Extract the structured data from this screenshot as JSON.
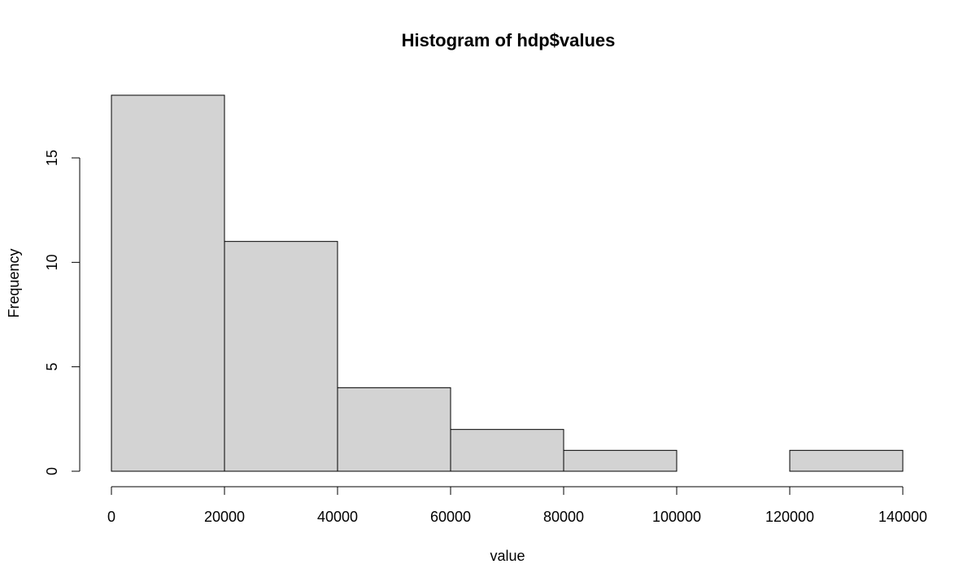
{
  "chart_data": {
    "type": "bar",
    "title": "Histogram of hdp$values",
    "xlabel": "value",
    "ylabel": "Frequency",
    "bins": [
      {
        "from": 0,
        "to": 20000,
        "count": 18
      },
      {
        "from": 20000,
        "to": 40000,
        "count": 11
      },
      {
        "from": 40000,
        "to": 60000,
        "count": 4
      },
      {
        "from": 60000,
        "to": 80000,
        "count": 2
      },
      {
        "from": 80000,
        "to": 100000,
        "count": 1
      },
      {
        "from": 100000,
        "to": 120000,
        "count": 0
      },
      {
        "from": 120000,
        "to": 140000,
        "count": 1
      }
    ],
    "xlim": [
      0,
      140000
    ],
    "ylim": [
      0,
      18
    ],
    "x_ticks": [
      0,
      20000,
      40000,
      60000,
      80000,
      100000,
      120000,
      140000
    ],
    "x_tick_labels": [
      "0",
      "20000",
      "40000",
      "60000",
      "80000",
      "100000",
      "120000",
      "140000"
    ],
    "y_ticks": [
      0,
      5,
      10,
      15
    ],
    "y_tick_labels": [
      "0",
      "5",
      "10",
      "15"
    ],
    "grid": false,
    "legend": "none",
    "colors": {
      "bar_fill": "#d3d3d3",
      "bar_stroke": "#000000",
      "axis": "#000000",
      "background": "#ffffff"
    }
  }
}
